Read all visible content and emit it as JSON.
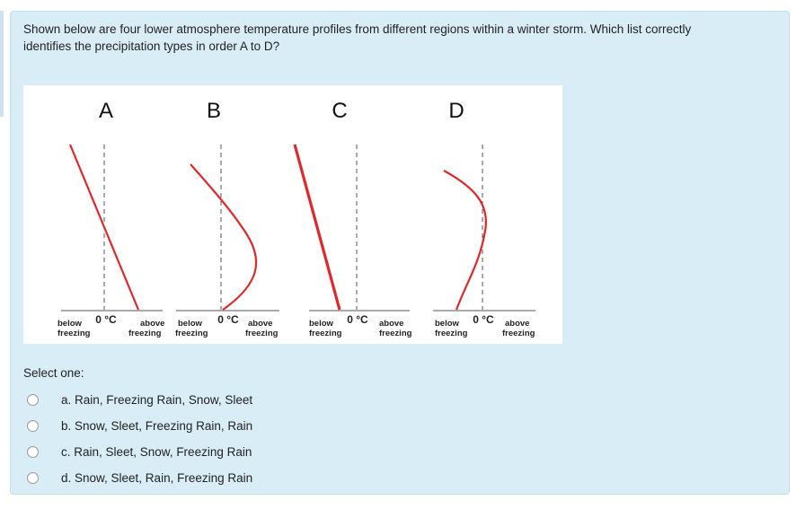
{
  "question": {
    "text": "Shown below are four lower atmosphere temperature profiles from different regions within a winter storm. Which list correctly identifies the precipitation types in order A to D?"
  },
  "figure": {
    "profiles": [
      {
        "letter": "A",
        "below": [
          "below",
          "freezing"
        ],
        "zero": "0 °C",
        "above": [
          "above",
          "freezing"
        ]
      },
      {
        "letter": "B",
        "below": [
          "below",
          "freezing"
        ],
        "zero": "0 °C",
        "above": [
          "above",
          "freezing"
        ]
      },
      {
        "letter": "C",
        "below": [
          "below",
          "freezing"
        ],
        "zero": "0 °C",
        "above": [
          "above",
          "freezing"
        ]
      },
      {
        "letter": "D",
        "below": [
          "below",
          "freezing"
        ],
        "zero": "0 °C",
        "above": [
          "above",
          "freezing"
        ]
      }
    ],
    "line_color": "#e0282b"
  },
  "answer": {
    "select_label": "Select one:",
    "options": [
      "a. Rain, Freezing Rain, Snow, Sleet",
      "b. Snow, Sleet, Freezing Rain, Rain",
      "c. Rain, Sleet, Snow, Freezing Rain",
      "d. Snow, Sleet, Rain, Freezing Rain"
    ]
  },
  "colors": {
    "panel_background": "#d9edf7",
    "profile_line": "#e0282b"
  }
}
